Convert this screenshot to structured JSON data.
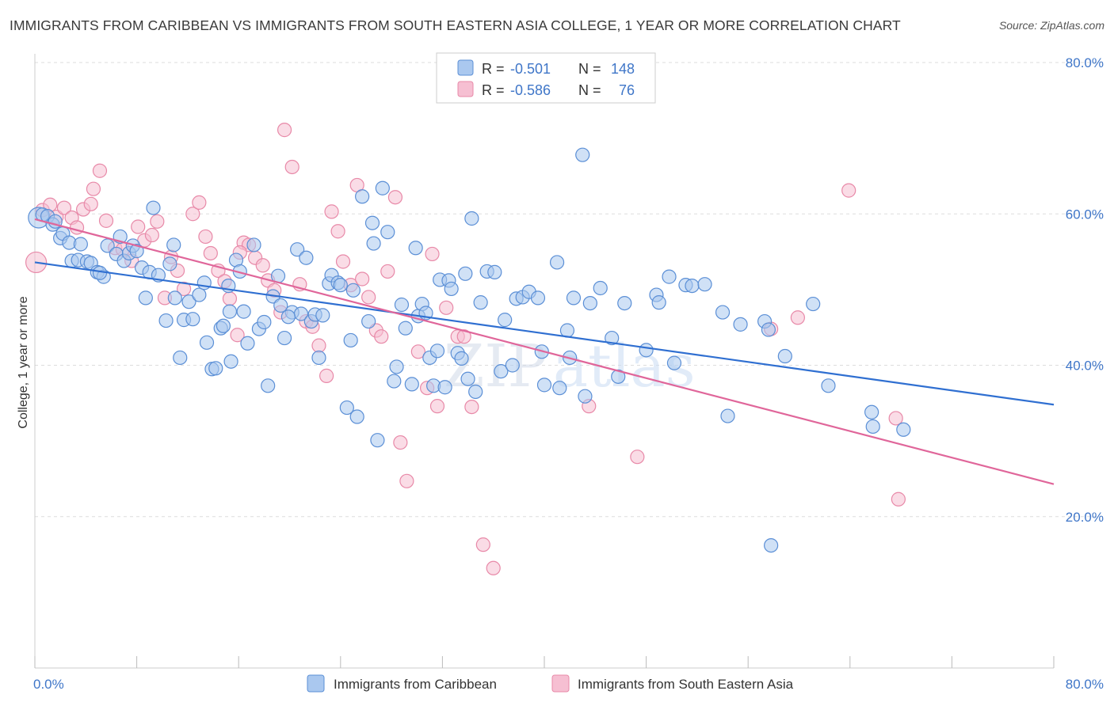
{
  "title": "IMMIGRANTS FROM CARIBBEAN VS IMMIGRANTS FROM SOUTH EASTERN ASIA COLLEGE, 1 YEAR OR MORE CORRELATION CHART",
  "source": "Source: ZipAtlas.com",
  "watermark": {
    "zip": "ZIP",
    "atlas": "atlas"
  },
  "colors": {
    "blue_fill": "#aac8ef",
    "blue_stroke": "#5b8fd6",
    "blue_line": "#2f6fd1",
    "pink_fill": "#f6bfd2",
    "pink_stroke": "#e889a8",
    "pink_line": "#e0669a",
    "axis_text": "#3f76c8",
    "grid": "#dddddd"
  },
  "legend": {
    "r_label": "R =",
    "n_label": "N =",
    "series": [
      {
        "r": "-0.501",
        "n": "148"
      },
      {
        "r": "-0.586",
        "n": "76"
      }
    ]
  },
  "chart_data": {
    "type": "scatter",
    "title": "IMMIGRANTS FROM CARIBBEAN VS IMMIGRANTS FROM SOUTH EASTERN ASIA COLLEGE, 1 YEAR OR MORE CORRELATION CHART",
    "xlabel": "",
    "ylabel": "College, 1 year or more",
    "xlim": [
      0,
      80
    ],
    "ylim": [
      0,
      80
    ],
    "x_tick_labels": [
      "0.0%",
      "80.0%"
    ],
    "y_ticks": [
      20,
      40,
      60,
      80
    ],
    "y_tick_labels": [
      "20.0%",
      "40.0%",
      "60.0%",
      "80.0%"
    ],
    "grid": true,
    "series": [
      {
        "name": "Immigrants from Caribbean",
        "r": -0.501,
        "n": 148,
        "trend": {
          "x": [
            0,
            80
          ],
          "y": [
            53.6,
            34.8
          ]
        },
        "points": [
          [
            0.3,
            59.5
          ],
          [
            0.6,
            59.9
          ],
          [
            1.0,
            59.7
          ],
          [
            1.4,
            58.6
          ],
          [
            1.6,
            59.0
          ],
          [
            2.0,
            56.8
          ],
          [
            2.2,
            57.4
          ],
          [
            2.7,
            56.2
          ],
          [
            2.9,
            53.8
          ],
          [
            3.4,
            53.9
          ],
          [
            3.6,
            56.0
          ],
          [
            4.1,
            53.7
          ],
          [
            4.4,
            53.5
          ],
          [
            4.9,
            52.3
          ],
          [
            5.4,
            51.7
          ],
          [
            5.7,
            55.8
          ],
          [
            6.4,
            54.7
          ],
          [
            6.7,
            57.0
          ],
          [
            7.0,
            53.8
          ],
          [
            7.4,
            54.8
          ],
          [
            7.7,
            55.8
          ],
          [
            8.0,
            55.1
          ],
          [
            8.4,
            52.9
          ],
          [
            8.7,
            48.9
          ],
          [
            9.0,
            52.3
          ],
          [
            9.3,
            60.8
          ],
          [
            9.7,
            51.9
          ],
          [
            10.3,
            45.9
          ],
          [
            10.6,
            53.4
          ],
          [
            10.9,
            55.9
          ],
          [
            11.0,
            48.9
          ],
          [
            11.4,
            41.0
          ],
          [
            11.7,
            46.0
          ],
          [
            12.1,
            48.4
          ],
          [
            12.4,
            46.1
          ],
          [
            12.9,
            49.3
          ],
          [
            13.3,
            50.9
          ],
          [
            13.5,
            43.0
          ],
          [
            13.9,
            39.5
          ],
          [
            14.2,
            39.6
          ],
          [
            14.6,
            44.9
          ],
          [
            14.8,
            45.2
          ],
          [
            15.2,
            50.5
          ],
          [
            15.3,
            47.1
          ],
          [
            15.8,
            53.9
          ],
          [
            16.1,
            52.4
          ],
          [
            16.4,
            47.1
          ],
          [
            16.7,
            42.9
          ],
          [
            17.2,
            55.9
          ],
          [
            17.6,
            44.8
          ],
          [
            18.0,
            45.7
          ],
          [
            18.3,
            37.3
          ],
          [
            18.7,
            49.1
          ],
          [
            19.1,
            51.8
          ],
          [
            19.3,
            47.9
          ],
          [
            19.6,
            43.6
          ],
          [
            20.2,
            47.0
          ],
          [
            20.6,
            55.3
          ],
          [
            20.9,
            46.8
          ],
          [
            21.3,
            54.2
          ],
          [
            21.7,
            45.8
          ],
          [
            22.0,
            46.7
          ],
          [
            22.3,
            41.0
          ],
          [
            22.6,
            46.6
          ],
          [
            23.1,
            50.8
          ],
          [
            23.3,
            51.9
          ],
          [
            23.8,
            50.9
          ],
          [
            24.0,
            50.6
          ],
          [
            24.5,
            34.4
          ],
          [
            24.8,
            43.3
          ],
          [
            25.0,
            49.9
          ],
          [
            25.3,
            33.2
          ],
          [
            25.7,
            62.3
          ],
          [
            26.2,
            45.8
          ],
          [
            26.5,
            58.8
          ],
          [
            26.6,
            56.1
          ],
          [
            26.9,
            30.1
          ],
          [
            27.3,
            63.4
          ],
          [
            27.7,
            57.6
          ],
          [
            28.2,
            37.9
          ],
          [
            28.4,
            39.8
          ],
          [
            28.8,
            48.0
          ],
          [
            29.1,
            44.9
          ],
          [
            29.6,
            37.5
          ],
          [
            29.9,
            55.5
          ],
          [
            30.1,
            46.5
          ],
          [
            30.4,
            48.1
          ],
          [
            30.7,
            46.9
          ],
          [
            31.0,
            41.0
          ],
          [
            31.3,
            37.3
          ],
          [
            31.6,
            41.9
          ],
          [
            31.8,
            51.3
          ],
          [
            32.2,
            37.1
          ],
          [
            32.5,
            51.2
          ],
          [
            32.7,
            50.1
          ],
          [
            33.2,
            41.6
          ],
          [
            33.5,
            40.9
          ],
          [
            33.8,
            52.1
          ],
          [
            34.0,
            38.2
          ],
          [
            34.3,
            59.4
          ],
          [
            34.6,
            36.5
          ],
          [
            35.0,
            48.3
          ],
          [
            35.5,
            52.4
          ],
          [
            36.1,
            52.3
          ],
          [
            36.6,
            39.2
          ],
          [
            36.9,
            46.0
          ],
          [
            37.5,
            40.0
          ],
          [
            37.8,
            48.8
          ],
          [
            38.3,
            49.0
          ],
          [
            38.8,
            49.7
          ],
          [
            39.5,
            48.9
          ],
          [
            39.8,
            41.8
          ],
          [
            40.0,
            37.4
          ],
          [
            41.0,
            53.6
          ],
          [
            41.2,
            37.0
          ],
          [
            41.8,
            44.6
          ],
          [
            42.0,
            41.0
          ],
          [
            42.3,
            48.9
          ],
          [
            43.0,
            67.8
          ],
          [
            43.2,
            35.9
          ],
          [
            43.6,
            48.2
          ],
          [
            44.4,
            50.2
          ],
          [
            45.3,
            43.6
          ],
          [
            45.8,
            38.5
          ],
          [
            46.3,
            48.2
          ],
          [
            48.0,
            42.0
          ],
          [
            48.8,
            49.3
          ],
          [
            49.0,
            48.3
          ],
          [
            49.8,
            51.7
          ],
          [
            50.2,
            40.3
          ],
          [
            51.1,
            50.6
          ],
          [
            51.6,
            50.5
          ],
          [
            52.6,
            50.7
          ],
          [
            54.0,
            47.0
          ],
          [
            54.4,
            33.3
          ],
          [
            55.4,
            45.4
          ],
          [
            57.3,
            45.8
          ],
          [
            57.6,
            44.7
          ],
          [
            58.9,
            41.2
          ],
          [
            61.1,
            48.1
          ],
          [
            62.3,
            37.3
          ],
          [
            65.7,
            33.8
          ],
          [
            65.8,
            31.9
          ],
          [
            68.2,
            31.5
          ],
          [
            57.8,
            16.2
          ],
          [
            19.9,
            46.4
          ],
          [
            15.4,
            40.5
          ],
          [
            5.1,
            52.2
          ]
        ]
      },
      {
        "name": "Immigrants from South Eastern Asia",
        "r": -0.586,
        "n": 76,
        "trend": {
          "x": [
            0,
            80
          ],
          "y": [
            59.3,
            24.3
          ]
        },
        "points": [
          [
            0.1,
            53.6
          ],
          [
            0.6,
            60.5
          ],
          [
            1.2,
            61.2
          ],
          [
            1.7,
            59.6
          ],
          [
            2.3,
            60.8
          ],
          [
            2.9,
            59.5
          ],
          [
            3.3,
            58.2
          ],
          [
            3.8,
            60.6
          ],
          [
            4.4,
            61.3
          ],
          [
            4.6,
            63.3
          ],
          [
            5.1,
            65.7
          ],
          [
            5.6,
            59.1
          ],
          [
            6.3,
            55.5
          ],
          [
            6.9,
            55.3
          ],
          [
            7.6,
            53.8
          ],
          [
            8.1,
            58.3
          ],
          [
            8.6,
            56.5
          ],
          [
            9.2,
            57.2
          ],
          [
            9.6,
            59.0
          ],
          [
            10.2,
            48.9
          ],
          [
            10.7,
            54.3
          ],
          [
            11.2,
            52.5
          ],
          [
            11.7,
            50.1
          ],
          [
            12.4,
            60.0
          ],
          [
            12.9,
            61.5
          ],
          [
            13.4,
            57.0
          ],
          [
            13.8,
            54.8
          ],
          [
            14.4,
            52.5
          ],
          [
            14.9,
            51.1
          ],
          [
            15.3,
            48.8
          ],
          [
            15.9,
            44.0
          ],
          [
            16.4,
            56.2
          ],
          [
            16.8,
            55.9
          ],
          [
            17.3,
            54.2
          ],
          [
            17.9,
            53.2
          ],
          [
            18.3,
            51.2
          ],
          [
            18.8,
            49.9
          ],
          [
            19.3,
            47.0
          ],
          [
            19.6,
            71.1
          ],
          [
            20.2,
            66.2
          ],
          [
            20.8,
            50.7
          ],
          [
            21.3,
            45.8
          ],
          [
            21.8,
            45.1
          ],
          [
            22.3,
            42.6
          ],
          [
            22.9,
            38.6
          ],
          [
            23.3,
            60.3
          ],
          [
            23.8,
            57.7
          ],
          [
            24.2,
            53.7
          ],
          [
            24.8,
            50.6
          ],
          [
            25.3,
            63.8
          ],
          [
            25.7,
            51.4
          ],
          [
            26.2,
            49.0
          ],
          [
            26.8,
            44.6
          ],
          [
            27.2,
            43.8
          ],
          [
            27.7,
            52.4
          ],
          [
            28.3,
            62.2
          ],
          [
            28.7,
            29.8
          ],
          [
            29.2,
            24.7
          ],
          [
            30.1,
            41.8
          ],
          [
            30.8,
            37.0
          ],
          [
            31.2,
            54.7
          ],
          [
            31.6,
            34.6
          ],
          [
            32.3,
            47.6
          ],
          [
            33.2,
            43.8
          ],
          [
            33.7,
            43.8
          ],
          [
            34.3,
            34.5
          ],
          [
            35.2,
            16.3
          ],
          [
            36.0,
            13.2
          ],
          [
            43.5,
            34.6
          ],
          [
            47.3,
            27.9
          ],
          [
            57.8,
            44.8
          ],
          [
            59.9,
            46.3
          ],
          [
            63.9,
            63.1
          ],
          [
            67.6,
            33.0
          ],
          [
            67.8,
            22.3
          ],
          [
            16.1,
            54.9
          ]
        ]
      }
    ]
  },
  "bottom_legend": [
    "Immigrants from Caribbean",
    "Immigrants from South Eastern Asia"
  ]
}
